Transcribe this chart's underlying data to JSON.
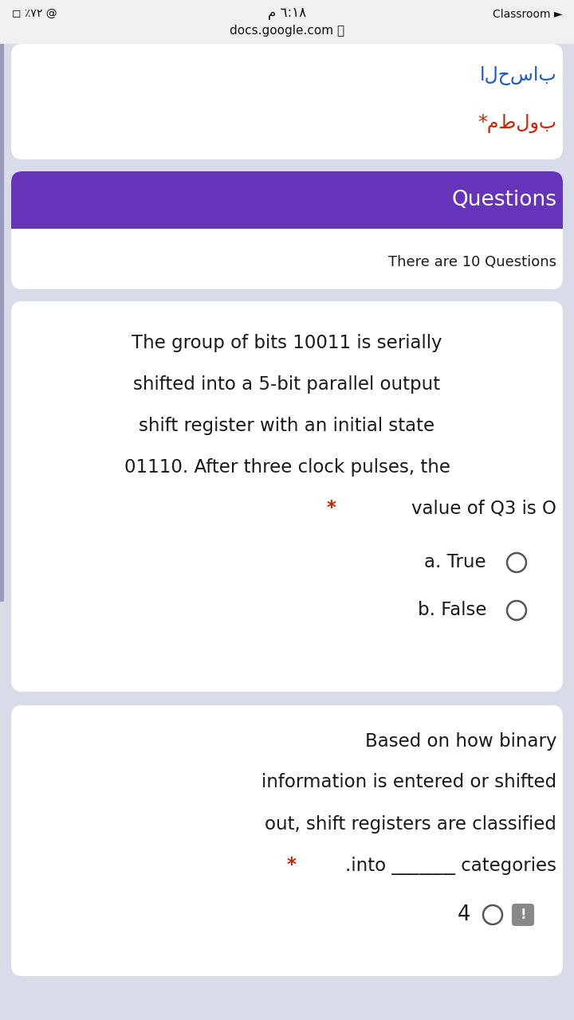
{
  "bg_color": "#d8dce8",
  "header_bg": "#6633bb",
  "header_text": "Questions",
  "header_text_color": "#ffffff",
  "subheader_text": "There are 10 Questions",
  "arabic_title": "الحساب",
  "arabic_required": "*مطلوب",
  "arabic_link_color": "#1a56cc",
  "arabic_req_color": "#cc2200",
  "card_bg": "#ffffff",
  "text_color": "#1a1a1a",
  "star_color": "#cc2200",
  "left_bar_color": "#9999bb",
  "q1_lines_plain": [
    "The group of bits 10011 is serially",
    "shifted into a 5-bit parallel output",
    "shift register with an initial state",
    "01110. After three clock pulses, the"
  ],
  "q1_starred_line": "value of Q3 is O",
  "q1_options": [
    "a. True",
    "b. False"
  ],
  "q2_lines_plain": [
    "Based on how binary",
    "information is entered or shifted",
    "out, shift registers are classified"
  ],
  "q2_starred_line": ".into _______ categories",
  "q2_answer": "4",
  "statusbar_left": "◻ ٪٧٢ @",
  "statusbar_center_top": "م ٦:١٨",
  "statusbar_center_bot": "docs.google.com 🔒",
  "statusbar_right": "Classroom ►",
  "font_size_status": 10,
  "font_size_arabic": 17,
  "font_size_header": 19,
  "font_size_sub": 13,
  "font_size_q": 16.5
}
